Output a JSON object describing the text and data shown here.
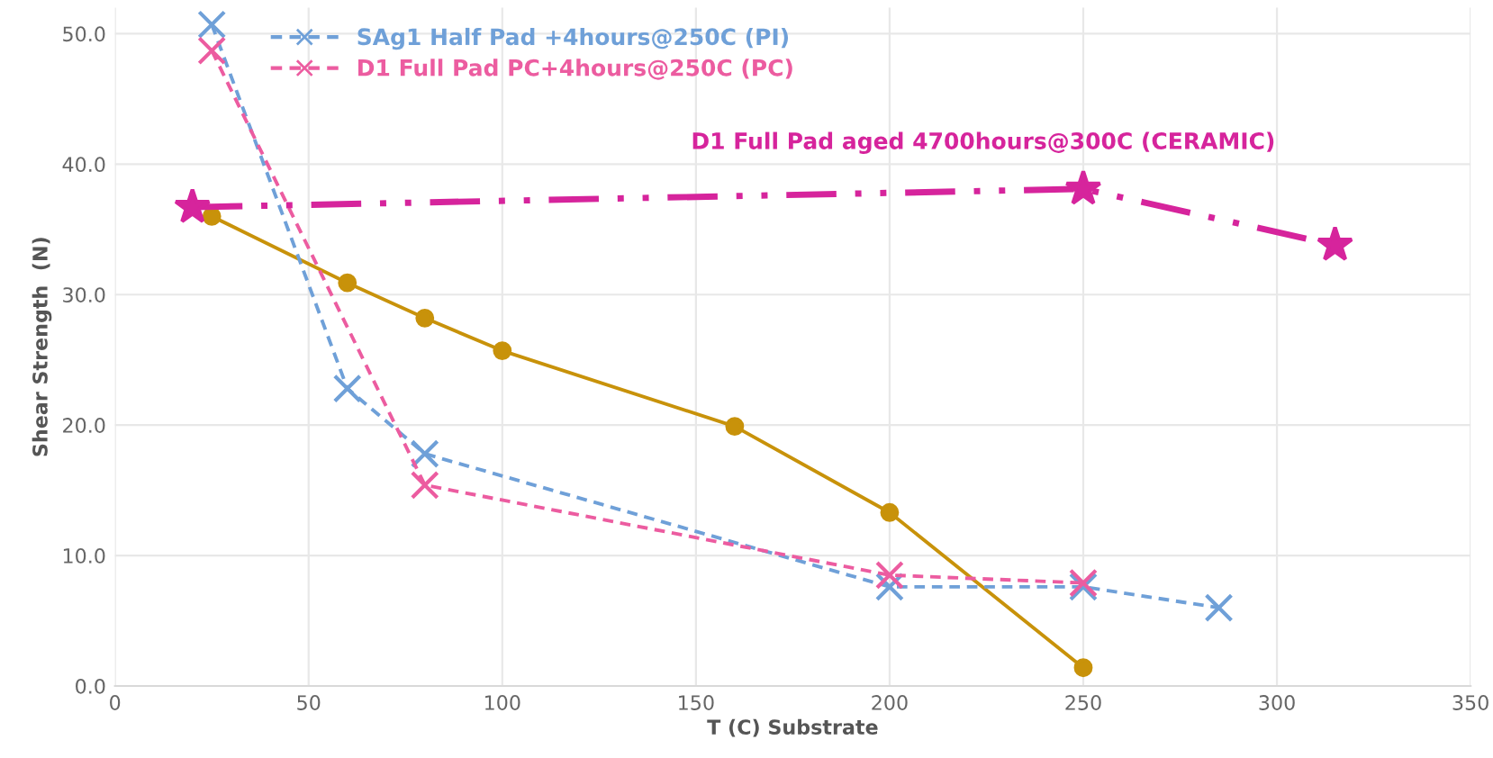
{
  "chart_data": {
    "type": "line",
    "xlabel": "T (C) Substrate",
    "ylabel": "Shear Strength  (N)",
    "xlim": [
      0,
      350
    ],
    "xticks": [
      0,
      50,
      100,
      150,
      200,
      250,
      300,
      350
    ],
    "ylim": [
      0,
      52
    ],
    "yticks": [
      {
        "value": 0,
        "label": "0.0"
      },
      {
        "value": 10,
        "label": "10.0"
      },
      {
        "value": 20,
        "label": "20.0"
      },
      {
        "value": 30,
        "label": "30.0"
      },
      {
        "value": 40,
        "label": "40.0"
      },
      {
        "value": 50,
        "label": "50.0"
      }
    ],
    "grid": true,
    "legend": "top left",
    "series": [
      {
        "color": "#c8920a",
        "marker": "circle",
        "line_style": "solid",
        "x": [
          25,
          60,
          80,
          100,
          160,
          200,
          250
        ],
        "values": [
          36.0,
          30.9,
          28.2,
          25.7,
          19.9,
          13.3,
          1.4
        ]
      },
      {
        "name": "SAg1 Half Pad +4hours@250C (PI)",
        "color": "#6fa0d8",
        "marker": "cross",
        "line_style": "dashed",
        "x": [
          25,
          60,
          80,
          200,
          250,
          285
        ],
        "values": [
          50.7,
          22.8,
          17.8,
          7.6,
          7.6,
          6.0
        ]
      },
      {
        "name": "D1 Full Pad PC+4hours@250C (PC)",
        "color": "#ec5ca0",
        "marker": "cross",
        "line_style": "dashed",
        "x": [
          25,
          80,
          200,
          250
        ],
        "values": [
          48.7,
          15.4,
          8.5,
          7.9
        ]
      },
      {
        "name": "D1 Full Pad aged 4700hours@300C (CERAMIC)",
        "color": "#d6249c",
        "marker": "star",
        "line_style": "dashdot",
        "x": [
          20,
          250,
          315
        ],
        "values": [
          36.7,
          38.1,
          33.8
        ]
      }
    ]
  }
}
